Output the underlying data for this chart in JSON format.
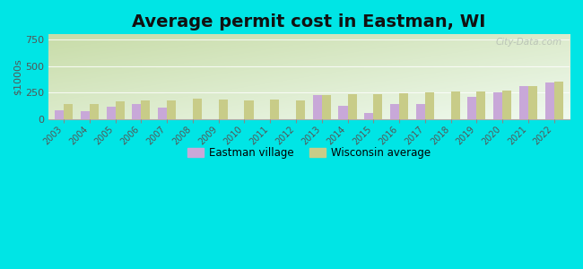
{
  "title": "Average permit cost in Eastman, WI",
  "ylabel": "$1000s",
  "background_outer": "#00e5e5",
  "years": [
    2003,
    2004,
    2005,
    2006,
    2007,
    2008,
    2009,
    2010,
    2011,
    2012,
    2013,
    2014,
    2015,
    2016,
    2017,
    2018,
    2019,
    2020,
    2021,
    2022
  ],
  "eastman": [
    85,
    75,
    120,
    140,
    110,
    0,
    0,
    0,
    0,
    0,
    230,
    130,
    60,
    145,
    145,
    0,
    215,
    250,
    315,
    350
  ],
  "wisconsin": [
    145,
    145,
    165,
    180,
    175,
    190,
    185,
    180,
    185,
    178,
    228,
    238,
    238,
    242,
    252,
    258,
    262,
    273,
    313,
    355
  ],
  "eastman_color": "#c8a8d8",
  "wisconsin_color": "#c8cc88",
  "ylim": [
    0,
    800
  ],
  "yticks": [
    0,
    250,
    500,
    750
  ],
  "bar_width": 0.35,
  "legend_eastman": "Eastman village",
  "legend_wisconsin": "Wisconsin average",
  "title_fontsize": 14,
  "watermark": "City-Data.com",
  "grad_top_left": "#c8dca8",
  "grad_bottom_right": "#f0faf0"
}
